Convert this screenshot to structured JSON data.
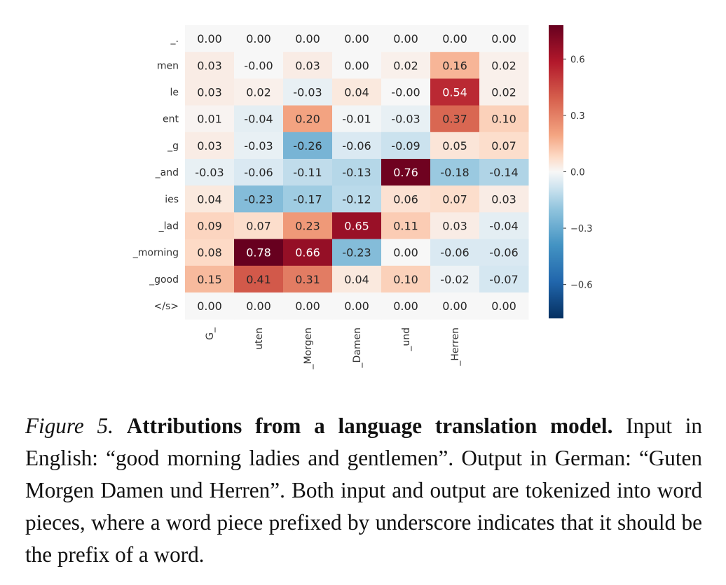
{
  "chart_data": {
    "type": "heatmap",
    "rows": [
      "_.",
      "men",
      "le",
      "ent",
      "_g",
      "_and",
      "ies",
      "_lad",
      "_morning",
      "_good",
      "</s>"
    ],
    "columns": [
      "G_",
      "uten",
      "_Morgen",
      "_Damen",
      "_und",
      "_Herren",
      ""
    ],
    "values": [
      [
        0.0,
        0.0,
        0.0,
        0.0,
        0.0,
        0.0,
        0.0
      ],
      [
        0.03,
        -0.0,
        0.03,
        0.0,
        0.02,
        0.16,
        0.02
      ],
      [
        0.03,
        0.02,
        -0.03,
        0.04,
        -0.0,
        0.54,
        0.02
      ],
      [
        0.01,
        -0.04,
        0.2,
        -0.01,
        -0.03,
        0.37,
        0.1
      ],
      [
        0.03,
        -0.03,
        -0.26,
        -0.06,
        -0.09,
        0.05,
        0.07
      ],
      [
        -0.03,
        -0.06,
        -0.11,
        -0.13,
        0.76,
        -0.18,
        -0.14
      ],
      [
        0.04,
        -0.23,
        -0.17,
        -0.12,
        0.06,
        0.07,
        0.03
      ],
      [
        0.09,
        0.07,
        0.23,
        0.65,
        0.11,
        0.03,
        -0.04
      ],
      [
        0.08,
        0.78,
        0.66,
        -0.23,
        0.0,
        -0.06,
        -0.06
      ],
      [
        0.15,
        0.41,
        0.31,
        0.04,
        0.1,
        -0.02,
        -0.07
      ],
      [
        0.0,
        0.0,
        0.0,
        0.0,
        0.0,
        0.0,
        0.0
      ]
    ],
    "colorbar": {
      "vmin": -0.78,
      "vmax": 0.78,
      "ticks": [
        0.6,
        0.3,
        0.0,
        -0.3,
        -0.6
      ],
      "tick_labels": [
        "0.6",
        "0.3",
        "0.0",
        "−0.3",
        "−0.6"
      ]
    },
    "colors": {
      "negative": "#053061",
      "neutral": "#f7f7f7",
      "positive": "#67001f"
    }
  },
  "caption": {
    "figure_label": "Figure 5.",
    "title": "Attributions from a language translation model.",
    "body": "Input in English: “good morning ladies and gentlemen”. Output in German: “Guten Morgen Damen und Herren”.  Both input and output are tokenized into word pieces, where a word piece prefixed by underscore indicates that it should be the prefix of a word."
  }
}
